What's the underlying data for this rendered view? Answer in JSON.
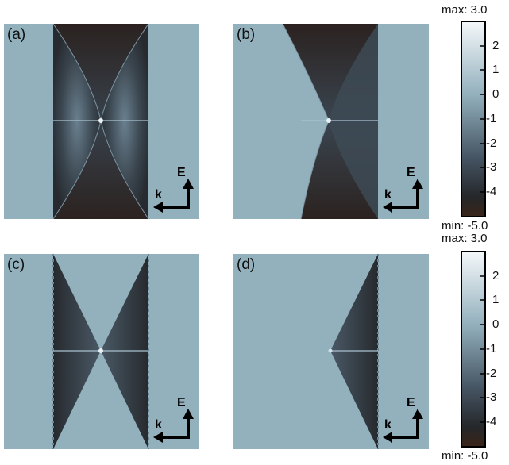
{
  "panels": [
    {
      "label": "(a)",
      "variant": "a"
    },
    {
      "label": "(b)",
      "variant": "b"
    },
    {
      "label": "(c)",
      "variant": "c"
    },
    {
      "label": "(d)",
      "variant": "d"
    }
  ],
  "axes": {
    "energy_label": "E",
    "momentum_label": "k"
  },
  "colorbars": [
    {
      "max_label": "max: 3.0",
      "min_label": "min: -5.0",
      "ticks": [
        "2",
        "1",
        "0",
        "-1",
        "-2",
        "-3",
        "-4"
      ]
    },
    {
      "max_label": "max: 3.0",
      "min_label": "min: -5.0",
      "ticks": [
        "2",
        "1",
        "0",
        "-1",
        "-2",
        "-3",
        "-4"
      ]
    }
  ],
  "colors": {
    "background": "#93b0bd",
    "dark": "#1f2327",
    "darkest": "#2a1f1c",
    "highlight": "#e9f1f5"
  }
}
